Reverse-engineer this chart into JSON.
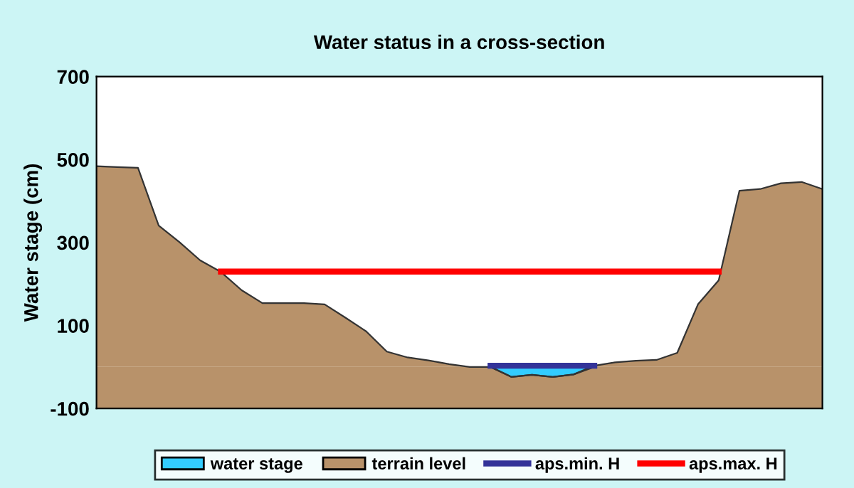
{
  "chart_data": {
    "type": "area",
    "title": "Water status in a cross-section",
    "ylabel": "Water stage (cm)",
    "categories": [
      null,
      null,
      null,
      null,
      null,
      null,
      null,
      null,
      null,
      null,
      null,
      null,
      null,
      null,
      null,
      null,
      null,
      null,
      null,
      null,
      null,
      null,
      null,
      null,
      null,
      null,
      null,
      null,
      null,
      null,
      null,
      null,
      null,
      null,
      null,
      null
    ],
    "series": [
      {
        "name": "water stage",
        "color": "#33ccff",
        "values": [
          null,
          null,
          null,
          null,
          null,
          null,
          null,
          null,
          null,
          null,
          null,
          null,
          null,
          null,
          null,
          null,
          null,
          null,
          null,
          0,
          -24,
          -19,
          -24,
          -18,
          0,
          null,
          null,
          null,
          null,
          null,
          null,
          null,
          null,
          null,
          null,
          null
        ]
      },
      {
        "name": "terrain level",
        "color": "#b8926a",
        "values": [
          484,
          482,
          480,
          341,
          301,
          257,
          229,
          185,
          154,
          154,
          154,
          151,
          119,
          86,
          37,
          23,
          16,
          7,
          0,
          0,
          -24,
          -19,
          -24,
          -18,
          3,
          11,
          15,
          17,
          34,
          151,
          209,
          425,
          429,
          443,
          446,
          429
        ]
      },
      {
        "name": "aps.min. H",
        "type": "line",
        "color": "#333399",
        "values": [
          null,
          null,
          null,
          null,
          null,
          null,
          null,
          null,
          null,
          null,
          null,
          null,
          null,
          null,
          null,
          null,
          null,
          null,
          null,
          3,
          3,
          3,
          3,
          3,
          3,
          null,
          null,
          null,
          null,
          null,
          null,
          null,
          null,
          null,
          null,
          null
        ]
      },
      {
        "name": "aps.max. H",
        "type": "line",
        "color": "#ff0000",
        "values": [
          null,
          null,
          null,
          null,
          null,
          null,
          230,
          230,
          230,
          230,
          230,
          230,
          230,
          230,
          230,
          230,
          230,
          230,
          230,
          230,
          230,
          230,
          230,
          230,
          230,
          230,
          230,
          230,
          230,
          230,
          230,
          null,
          null,
          null,
          null,
          null
        ]
      }
    ],
    "bands": [
      {
        "axis": "y",
        "from": -100,
        "to": 0,
        "color": "#b8926a"
      }
    ],
    "ylim": [
      -100,
      700
    ],
    "yticks": [
      -100,
      100,
      300,
      500,
      700
    ],
    "legend": "bottom"
  }
}
